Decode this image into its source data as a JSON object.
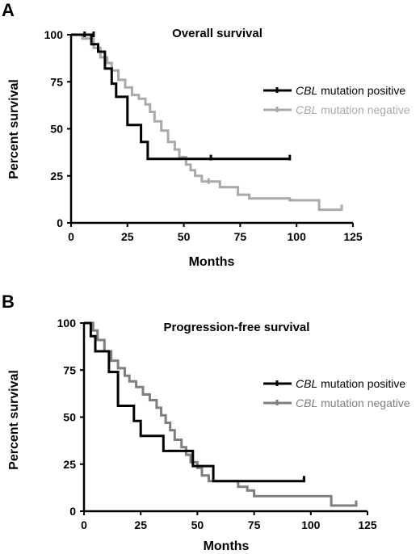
{
  "chart_data": [
    {
      "panel": "A",
      "type": "line",
      "title": "Overall survival",
      "xlabel": "Months",
      "ylabel": "Percent survival",
      "xlim": [
        0,
        125
      ],
      "ylim": [
        0,
        100
      ],
      "xticks": [
        0,
        25,
        50,
        75,
        100,
        125
      ],
      "yticks": [
        0,
        25,
        50,
        75,
        100
      ],
      "grid": false,
      "legend_position": "right",
      "series": [
        {
          "name_gene": "CBL",
          "name_rest": " mutation positive",
          "color": "#000000",
          "points": [
            [
              0,
              100
            ],
            [
              9,
              100
            ],
            [
              9,
              95
            ],
            [
              12,
              95
            ],
            [
              12,
              91
            ],
            [
              15,
              91
            ],
            [
              15,
              82
            ],
            [
              18,
              82
            ],
            [
              18,
              74
            ],
            [
              20,
              74
            ],
            [
              20,
              67
            ],
            [
              25,
              67
            ],
            [
              25,
              52
            ],
            [
              31,
              52
            ],
            [
              31,
              43
            ],
            [
              34,
              43
            ],
            [
              34,
              34
            ],
            [
              97,
              34
            ]
          ],
          "censors": [
            [
              6,
              100
            ],
            [
              10,
              100
            ],
            [
              62,
              34.5
            ],
            [
              97,
              34.5
            ]
          ]
        },
        {
          "name_gene": "CBL",
          "name_rest": " mutation negative",
          "color": "#a9a9a9",
          "points": [
            [
              0,
              100
            ],
            [
              5,
              100
            ],
            [
              5,
              98
            ],
            [
              10,
              98
            ],
            [
              10,
              93
            ],
            [
              13,
              93
            ],
            [
              13,
              88
            ],
            [
              16,
              88
            ],
            [
              16,
              85
            ],
            [
              18,
              85
            ],
            [
              18,
              81
            ],
            [
              21,
              81
            ],
            [
              21,
              76
            ],
            [
              24,
              76
            ],
            [
              24,
              72
            ],
            [
              27,
              72
            ],
            [
              27,
              68
            ],
            [
              30,
              68
            ],
            [
              30,
              66
            ],
            [
              33,
              66
            ],
            [
              33,
              63
            ],
            [
              35,
              63
            ],
            [
              35,
              59
            ],
            [
              37,
              59
            ],
            [
              37,
              54
            ],
            [
              40,
              54
            ],
            [
              40,
              49
            ],
            [
              43,
              49
            ],
            [
              43,
              43
            ],
            [
              46,
              43
            ],
            [
              46,
              39
            ],
            [
              48,
              39
            ],
            [
              48,
              35
            ],
            [
              51,
              35
            ],
            [
              51,
              31
            ],
            [
              53,
              31
            ],
            [
              53,
              28
            ],
            [
              55,
              28
            ],
            [
              55,
              25
            ],
            [
              58,
              25
            ],
            [
              58,
              22
            ],
            [
              66,
              22
            ],
            [
              66,
              19
            ],
            [
              74,
              19
            ],
            [
              74,
              15
            ],
            [
              79,
              15
            ],
            [
              79,
              13
            ],
            [
              97,
              13
            ],
            [
              97,
              12
            ],
            [
              110,
              12
            ],
            [
              110,
              7
            ],
            [
              120,
              7
            ],
            [
              120,
              8
            ]
          ],
          "censors": [
            [
              61,
              22
            ],
            [
              120,
              8
            ]
          ]
        }
      ]
    },
    {
      "panel": "B",
      "type": "line",
      "title": "Progression-free survival",
      "xlabel": "Months",
      "ylabel": "Percent survival",
      "xlim": [
        0,
        125
      ],
      "ylim": [
        0,
        100
      ],
      "xticks": [
        0,
        25,
        50,
        75,
        100,
        125
      ],
      "yticks": [
        0,
        25,
        50,
        75,
        100
      ],
      "grid": false,
      "legend_position": "right",
      "series": [
        {
          "name_gene": "CBL",
          "name_rest": " mutation positive",
          "color": "#000000",
          "points": [
            [
              0,
              100
            ],
            [
              3,
              100
            ],
            [
              3,
              93
            ],
            [
              5,
              93
            ],
            [
              5,
              85
            ],
            [
              11,
              85
            ],
            [
              11,
              74
            ],
            [
              15,
              74
            ],
            [
              15,
              56
            ],
            [
              22,
              56
            ],
            [
              22,
              48
            ],
            [
              25,
              48
            ],
            [
              25,
              40
            ],
            [
              35,
              40
            ],
            [
              35,
              32
            ],
            [
              48,
              32
            ],
            [
              48,
              24
            ],
            [
              57,
              24
            ],
            [
              57,
              16
            ],
            [
              97,
              16
            ],
            [
              97,
              17
            ]
          ],
          "censors": [
            [
              97,
              17
            ]
          ]
        },
        {
          "name_gene": "CBL",
          "name_rest": " mutation negative",
          "color": "#7f7f7f",
          "points": [
            [
              0,
              100
            ],
            [
              4,
              100
            ],
            [
              4,
              96
            ],
            [
              6,
              96
            ],
            [
              6,
              91
            ],
            [
              9,
              91
            ],
            [
              9,
              85
            ],
            [
              12,
              85
            ],
            [
              12,
              80
            ],
            [
              15,
              80
            ],
            [
              15,
              76
            ],
            [
              18,
              76
            ],
            [
              18,
              72
            ],
            [
              20,
              72
            ],
            [
              20,
              69
            ],
            [
              23,
              69
            ],
            [
              23,
              66
            ],
            [
              26,
              66
            ],
            [
              26,
              62
            ],
            [
              29,
              62
            ],
            [
              29,
              59
            ],
            [
              32,
              59
            ],
            [
              32,
              55
            ],
            [
              34,
              55
            ],
            [
              34,
              51
            ],
            [
              36,
              51
            ],
            [
              36,
              47
            ],
            [
              38,
              47
            ],
            [
              38,
              43
            ],
            [
              40,
              43
            ],
            [
              40,
              38
            ],
            [
              43,
              38
            ],
            [
              43,
              34
            ],
            [
              45,
              34
            ],
            [
              45,
              30
            ],
            [
              47,
              30
            ],
            [
              47,
              26
            ],
            [
              50,
              26
            ],
            [
              50,
              23
            ],
            [
              52,
              23
            ],
            [
              52,
              19
            ],
            [
              55,
              19
            ],
            [
              55,
              16
            ],
            [
              68,
              16
            ],
            [
              68,
              13
            ],
            [
              72,
              13
            ],
            [
              72,
              11
            ],
            [
              75,
              11
            ],
            [
              75,
              8
            ],
            [
              109,
              8
            ],
            [
              109,
              3
            ],
            [
              120,
              3
            ],
            [
              120,
              4
            ]
          ],
          "censors": [
            [
              4,
              99
            ],
            [
              120,
              4
            ]
          ]
        }
      ]
    }
  ]
}
